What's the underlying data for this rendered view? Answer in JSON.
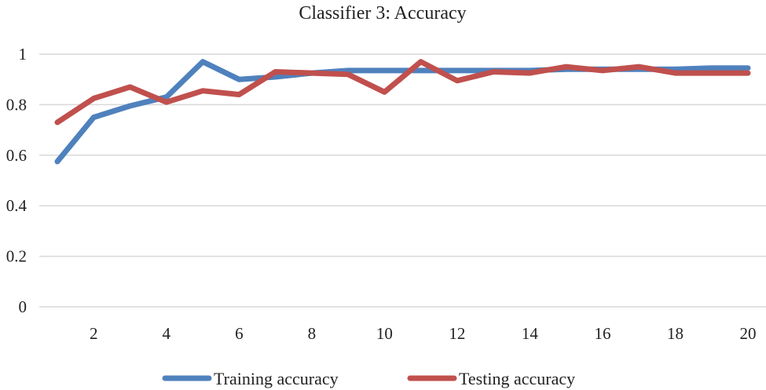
{
  "chart_data": {
    "type": "line",
    "title": "Classifier 3: Accuracy",
    "xlabel": "",
    "ylabel": "",
    "x": [
      1,
      2,
      3,
      4,
      5,
      6,
      7,
      8,
      9,
      10,
      11,
      12,
      13,
      14,
      15,
      16,
      17,
      18,
      19,
      20
    ],
    "xlim": [
      1,
      20
    ],
    "x_tick_labels": [
      "2",
      "4",
      "6",
      "8",
      "10",
      "12",
      "14",
      "16",
      "18",
      "20"
    ],
    "x_ticks": [
      2,
      4,
      6,
      8,
      10,
      12,
      14,
      16,
      18,
      20
    ],
    "ylim": [
      0,
      1
    ],
    "y_ticks": [
      0,
      0.2,
      0.4,
      0.6,
      0.8,
      1
    ],
    "y_tick_labels": [
      "0",
      "0.2",
      "0.4",
      "0.6",
      "0.8",
      "1"
    ],
    "grid": true,
    "legend_position": "bottom",
    "series": [
      {
        "name": "Training accuracy",
        "color": "#4f81bd",
        "values": [
          0.575,
          0.75,
          0.795,
          0.83,
          0.97,
          0.9,
          0.91,
          0.925,
          0.935,
          0.935,
          0.935,
          0.935,
          0.935,
          0.935,
          0.94,
          0.94,
          0.94,
          0.94,
          0.945,
          0.945
        ]
      },
      {
        "name": "Testing accuracy",
        "color": "#c0504d",
        "values": [
          0.73,
          0.825,
          0.87,
          0.81,
          0.855,
          0.84,
          0.93,
          0.925,
          0.92,
          0.85,
          0.97,
          0.895,
          0.93,
          0.925,
          0.95,
          0.935,
          0.95,
          0.925,
          0.925,
          0.925
        ]
      }
    ]
  }
}
